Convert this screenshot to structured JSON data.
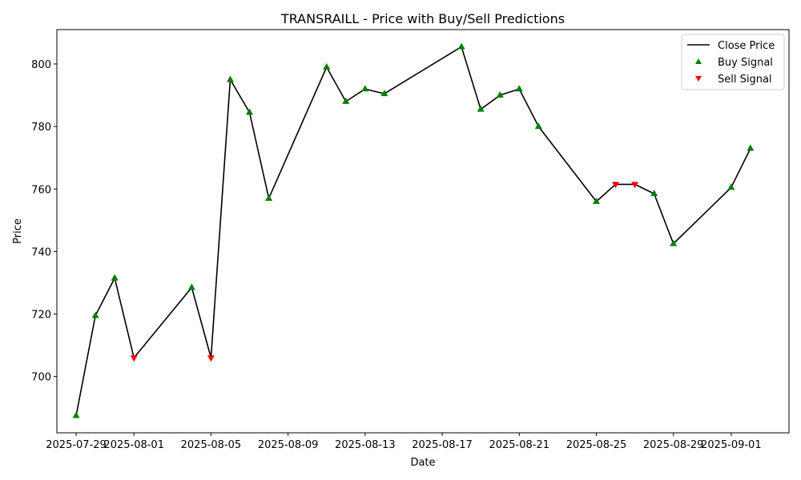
{
  "chart_data": {
    "type": "line",
    "title": "TRANSRAILL - Price with Buy/Sell Predictions",
    "xlabel": "Date",
    "ylabel": "Price",
    "x_ticks": [
      "2025-07-29",
      "2025-08-01",
      "2025-08-05",
      "2025-08-09",
      "2025-08-13",
      "2025-08-17",
      "2025-08-21",
      "2025-08-25",
      "2025-08-29",
      "2025-09-01"
    ],
    "y_ticks": [
      700,
      720,
      740,
      760,
      780,
      800
    ],
    "xlim": [
      "2025-07-28",
      "2025-09-04"
    ],
    "ylim": [
      682,
      811
    ],
    "grid": false,
    "legend_position": "top-right",
    "series": [
      {
        "name": "Close Price",
        "kind": "line",
        "color": "#000000",
        "points": [
          {
            "x": "2025-07-29",
            "y": 687.5
          },
          {
            "x": "2025-07-30",
            "y": 719.5
          },
          {
            "x": "2025-07-31",
            "y": 731.5
          },
          {
            "x": "2025-08-01",
            "y": 706
          },
          {
            "x": "2025-08-04",
            "y": 728.5
          },
          {
            "x": "2025-08-05",
            "y": 706
          },
          {
            "x": "2025-08-06",
            "y": 795
          },
          {
            "x": "2025-08-07",
            "y": 784.5
          },
          {
            "x": "2025-08-08",
            "y": 757
          },
          {
            "x": "2025-08-11",
            "y": 799
          },
          {
            "x": "2025-08-12",
            "y": 788
          },
          {
            "x": "2025-08-13",
            "y": 792
          },
          {
            "x": "2025-08-14",
            "y": 790.5
          },
          {
            "x": "2025-08-18",
            "y": 805.5
          },
          {
            "x": "2025-08-19",
            "y": 785.5
          },
          {
            "x": "2025-08-20",
            "y": 790
          },
          {
            "x": "2025-08-21",
            "y": 792
          },
          {
            "x": "2025-08-22",
            "y": 780
          },
          {
            "x": "2025-08-25",
            "y": 756
          },
          {
            "x": "2025-08-26",
            "y": 761.5
          },
          {
            "x": "2025-08-27",
            "y": 761.5
          },
          {
            "x": "2025-08-28",
            "y": 758.5
          },
          {
            "x": "2025-08-29",
            "y": 742.5
          },
          {
            "x": "2025-09-01",
            "y": 760.5
          },
          {
            "x": "2025-09-02",
            "y": 773
          }
        ]
      },
      {
        "name": "Buy Signal",
        "kind": "marker",
        "marker": "triangle-up",
        "color": "#008000",
        "points": [
          {
            "x": "2025-07-29",
            "y": 687.5
          },
          {
            "x": "2025-07-30",
            "y": 719.5
          },
          {
            "x": "2025-07-31",
            "y": 731.5
          },
          {
            "x": "2025-08-04",
            "y": 728.5
          },
          {
            "x": "2025-08-06",
            "y": 795
          },
          {
            "x": "2025-08-07",
            "y": 784.5
          },
          {
            "x": "2025-08-08",
            "y": 757
          },
          {
            "x": "2025-08-11",
            "y": 799
          },
          {
            "x": "2025-08-12",
            "y": 788
          },
          {
            "x": "2025-08-13",
            "y": 792
          },
          {
            "x": "2025-08-14",
            "y": 790.5
          },
          {
            "x": "2025-08-18",
            "y": 805.5
          },
          {
            "x": "2025-08-19",
            "y": 785.5
          },
          {
            "x": "2025-08-20",
            "y": 790
          },
          {
            "x": "2025-08-21",
            "y": 792
          },
          {
            "x": "2025-08-22",
            "y": 780
          },
          {
            "x": "2025-08-25",
            "y": 756
          },
          {
            "x": "2025-08-28",
            "y": 758.5
          },
          {
            "x": "2025-08-29",
            "y": 742.5
          },
          {
            "x": "2025-09-01",
            "y": 760.5
          },
          {
            "x": "2025-09-02",
            "y": 773
          }
        ]
      },
      {
        "name": "Sell Signal",
        "kind": "marker",
        "marker": "triangle-down",
        "color": "#ff0000",
        "points": [
          {
            "x": "2025-08-01",
            "y": 706
          },
          {
            "x": "2025-08-05",
            "y": 706
          },
          {
            "x": "2025-08-26",
            "y": 761.5
          },
          {
            "x": "2025-08-27",
            "y": 761.5
          }
        ]
      }
    ]
  }
}
